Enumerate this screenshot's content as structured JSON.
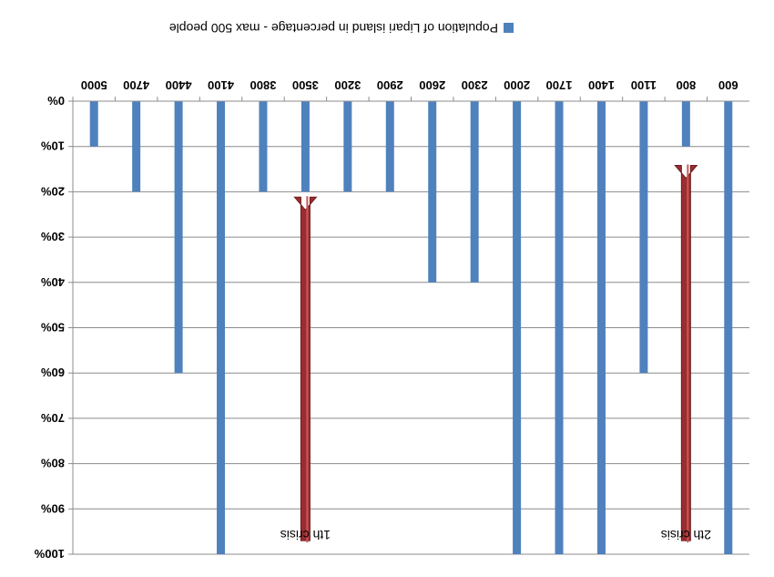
{
  "chart_data": {
    "type": "bar",
    "orientation": "rotated-180",
    "legend": {
      "label": "Population of Lipari island in percentage - max 500 people",
      "color": "#4f81bd",
      "placement": "top"
    },
    "categories": [
      "5000",
      "4700",
      "4400",
      "4100",
      "3800",
      "3500",
      "3200",
      "2900",
      "2600",
      "2300",
      "2000",
      "1700",
      "1400",
      "1100",
      "800",
      "600"
    ],
    "series": [
      {
        "name": "Population of Lipari island in percentage - max 500 people",
        "values": [
          10,
          20,
          60,
          100,
          20,
          20,
          20,
          20,
          40,
          40,
          100,
          100,
          100,
          60,
          10,
          100
        ]
      }
    ],
    "y_ticks": [
      "0%",
      "10%",
      "20%",
      "30%",
      "40%",
      "50%",
      "60%",
      "70%",
      "80%",
      "90%",
      "100%"
    ],
    "ylim": [
      0,
      100
    ],
    "grid": true,
    "bar_color": "#4f81bd",
    "annotations": [
      {
        "text": "1th crisis",
        "category": "3500",
        "from_value": 97,
        "to_value": 24,
        "color": "#9b2d30"
      },
      {
        "text": "2th crisis",
        "category": "800",
        "from_value": 97,
        "to_value": 17,
        "color": "#9b2d30"
      }
    ]
  }
}
